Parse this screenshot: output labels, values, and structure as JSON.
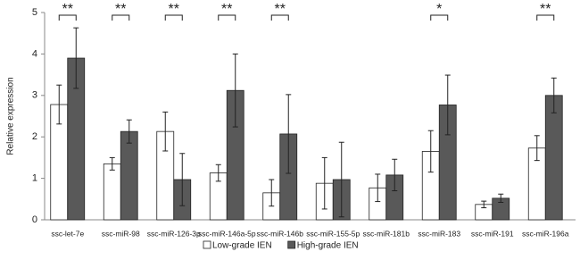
{
  "chart_data": {
    "type": "bar",
    "ylabel": "Relative expression",
    "categories": [
      "ssc-let-7e",
      "ssc-miR-98",
      "ssc-miR-126-3p",
      "ssc-miR-146a-5p",
      "ssc-miR-146b",
      "ssc-miR-155-5p",
      "ssc-miR-181b",
      "ssc-miR-183",
      "ssc-miR-191",
      "ssc-miR-196a"
    ],
    "series": [
      {
        "name": "Low-grade IEN",
        "color": "#ffffff",
        "values": [
          2.78,
          1.35,
          2.13,
          1.13,
          0.65,
          0.88,
          0.77,
          1.65,
          0.37,
          1.73
        ],
        "errors": [
          0.47,
          0.15,
          0.47,
          0.2,
          0.32,
          0.62,
          0.33,
          0.5,
          0.08,
          0.3
        ]
      },
      {
        "name": "High-grade IEN",
        "color": "#595959",
        "values": [
          3.9,
          2.13,
          0.97,
          3.12,
          2.07,
          0.97,
          1.08,
          2.77,
          0.52,
          3.0
        ],
        "errors": [
          0.73,
          0.28,
          0.63,
          0.88,
          0.95,
          0.9,
          0.38,
          0.72,
          0.1,
          0.42
        ]
      }
    ],
    "significance": [
      "**",
      "**",
      "**",
      "**",
      "**",
      null,
      null,
      "*",
      null,
      "**"
    ],
    "ylim": [
      0,
      5
    ],
    "yticks": [
      0,
      1,
      2,
      3,
      4,
      5
    ],
    "grid": false,
    "legend": "bottom"
  }
}
